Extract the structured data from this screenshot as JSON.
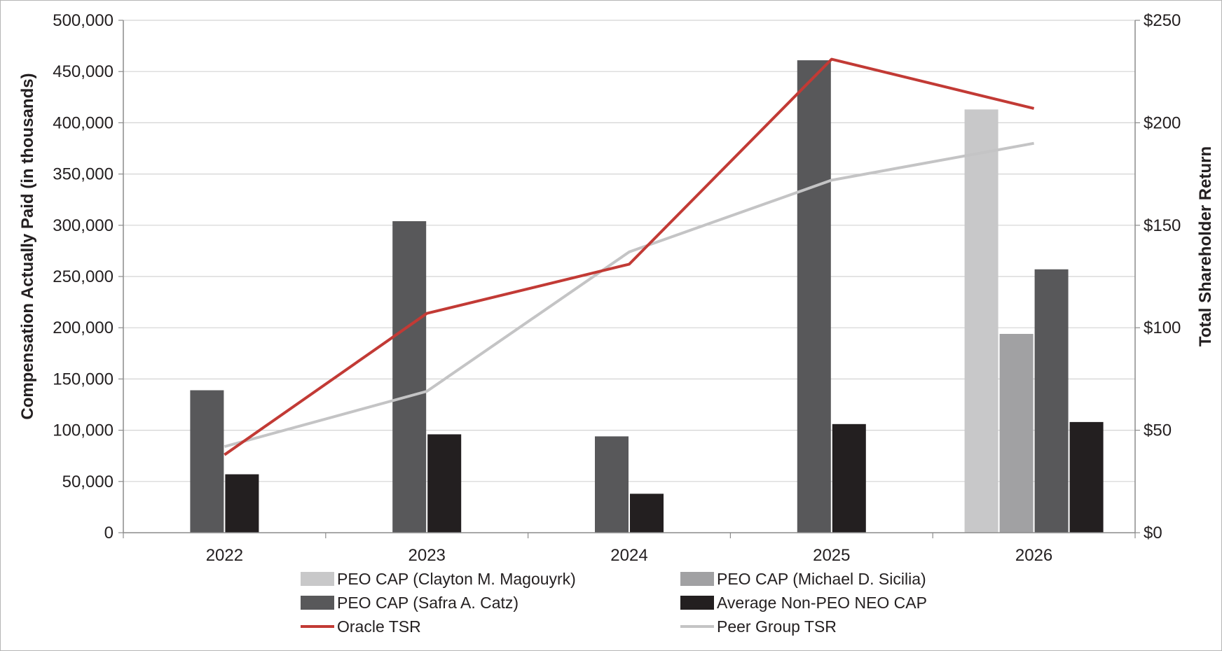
{
  "chart_data": {
    "type": "bar",
    "categories": [
      "2022",
      "2023",
      "2024",
      "2025",
      "2026"
    ],
    "y_left": {
      "label": "Compensation Actually Paid (in thousands)",
      "range": [
        0,
        500000
      ],
      "ticks": [
        "0",
        "50,000",
        "100,000",
        "150,000",
        "200,000",
        "250,000",
        "300,000",
        "350,000",
        "400,000",
        "450,000",
        "500,000"
      ]
    },
    "y_right": {
      "label": "Total Shareholder Return",
      "range": [
        0,
        250
      ],
      "ticks": [
        "$0",
        "$50",
        "$100",
        "$150",
        "$200",
        "$250"
      ]
    },
    "grid": true,
    "legend_position": "bottom",
    "bar_series": [
      {
        "name": "PEO CAP (Clayton M. Magouyrk)",
        "color": "#c8c8c9",
        "values": [
          null,
          null,
          null,
          null,
          413000
        ]
      },
      {
        "name": "PEO CAP (Michael D. Sicilia)",
        "color": "#a1a1a3",
        "values": [
          null,
          null,
          null,
          null,
          194000
        ]
      },
      {
        "name": "PEO CAP (Safra A. Catz)",
        "color": "#58585a",
        "values": [
          139000,
          304000,
          94000,
          461000,
          257000
        ]
      },
      {
        "name": "Average Non-PEO NEO CAP",
        "color": "#231f20",
        "values": [
          57000,
          96000,
          38000,
          106000,
          108000
        ]
      }
    ],
    "line_series": [
      {
        "name": "Oracle TSR",
        "color": "#c23a35",
        "axis": "right",
        "values": [
          38,
          107,
          131,
          231,
          207
        ]
      },
      {
        "name": "Peer Group TSR",
        "color": "#c4c4c5",
        "axis": "right",
        "values": [
          42,
          69,
          137,
          172,
          190
        ]
      }
    ]
  }
}
